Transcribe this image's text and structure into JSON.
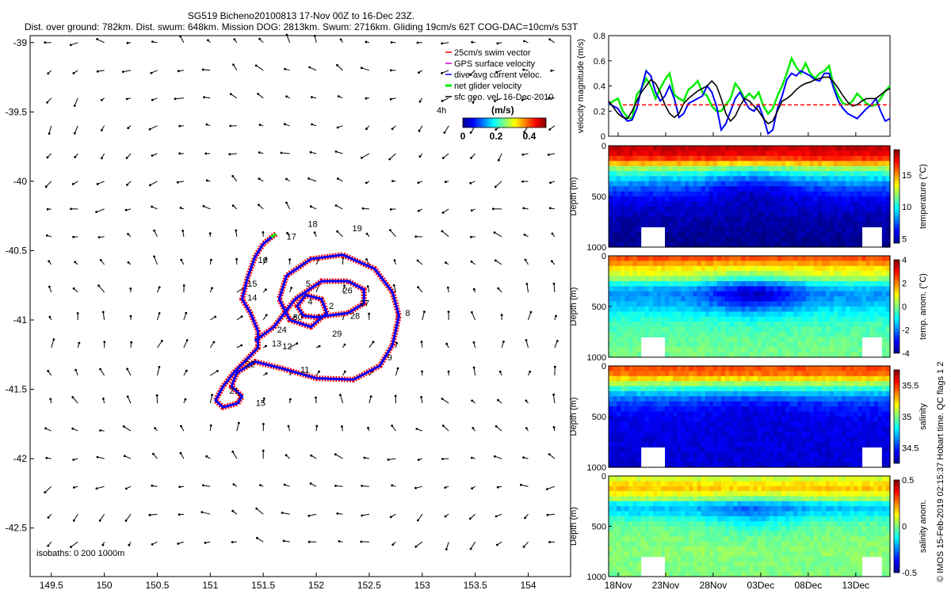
{
  "header": {
    "line1": "SG519 Bicheno20100813 17-Nov 00Z to 16-Dec 23Z.",
    "line2": "Dist. over ground: 782km. Dist. swum: 648km. Mission DOG: 2813km. Swum: 2716km. Gliding 19cm/s 62T COG-DAC=10cm/s 53T"
  },
  "credit": "© IMOS 15-Feb-2019 02:15:37 Hobart time. QC flags 1  2",
  "colors": {
    "swim": "#ff0000",
    "gps": "#d000d0",
    "dac": "#0000ff",
    "net": "#00ee00",
    "sfc": "#000000",
    "threshold": "#ff0000"
  },
  "chart_data": [
    {
      "type": "scatter",
      "name": "glider track map",
      "xticks": [
        "149.5",
        "150",
        "150.5",
        "151",
        "151.5",
        "152",
        "152.5",
        "153",
        "153.5",
        "154"
      ],
      "yticks": [
        "-39",
        "-39.5",
        "-40",
        "-40.5",
        "-41",
        "-41.5",
        "-42",
        "-42.5"
      ],
      "xlim": [
        149.3,
        154.4
      ],
      "ylim": [
        -42.85,
        -38.95
      ],
      "isobaths_note": "isobaths: 0   200   1000m",
      "legend": {
        "placement": "top-right",
        "items": [
          "25cm/s swim vector",
          "GPS surface velocity",
          "dive-avg current veloc.",
          "net glider velocity",
          "sfc geo. vel. 16-Dec-2010"
        ],
        "duration": "4h",
        "colorbar_title": "(m/s)",
        "colorbar_ticks": [
          "0",
          "0.2",
          "0.4"
        ]
      },
      "track": [
        [
          151.62,
          -40.38
        ],
        [
          151.5,
          -40.45
        ],
        [
          151.42,
          -40.55
        ],
        [
          151.35,
          -40.7
        ],
        [
          151.3,
          -40.85
        ],
        [
          151.38,
          -40.95
        ],
        [
          151.45,
          -41.08
        ],
        [
          151.45,
          -41.2
        ],
        [
          151.35,
          -41.28
        ],
        [
          151.22,
          -41.38
        ],
        [
          151.12,
          -41.48
        ],
        [
          151.05,
          -41.58
        ],
        [
          151.12,
          -41.63
        ],
        [
          151.26,
          -41.6
        ],
        [
          151.3,
          -41.55
        ],
        [
          151.2,
          -41.48
        ],
        [
          151.25,
          -41.38
        ],
        [
          151.42,
          -41.3
        ],
        [
          151.68,
          -41.35
        ],
        [
          152.0,
          -41.42
        ],
        [
          152.35,
          -41.43
        ],
        [
          152.6,
          -41.33
        ],
        [
          152.72,
          -41.18
        ],
        [
          152.78,
          -40.97
        ],
        [
          152.72,
          -40.8
        ],
        [
          152.55,
          -40.63
        ],
        [
          152.25,
          -40.53
        ],
        [
          151.95,
          -40.56
        ],
        [
          151.72,
          -40.68
        ],
        [
          151.65,
          -40.85
        ],
        [
          151.75,
          -41.0
        ],
        [
          151.95,
          -41.05
        ],
        [
          152.1,
          -40.95
        ],
        [
          152.05,
          -40.85
        ],
        [
          151.9,
          -40.82
        ],
        [
          151.82,
          -40.9
        ],
        [
          151.88,
          -40.97
        ],
        [
          152.0,
          -40.98
        ],
        [
          152.3,
          -40.95
        ],
        [
          152.45,
          -40.88
        ],
        [
          152.45,
          -40.78
        ],
        [
          152.3,
          -40.72
        ],
        [
          152.05,
          -40.72
        ],
        [
          151.8,
          -40.85
        ],
        [
          151.6,
          -41.05
        ],
        [
          151.42,
          -41.15
        ]
      ],
      "day_labels": [
        {
          "t": "2",
          "x": 152.12,
          "y": -40.92
        },
        {
          "t": "4",
          "x": 151.92,
          "y": -40.89
        },
        {
          "t": "5",
          "x": 151.9,
          "y": -40.76
        },
        {
          "t": "8",
          "x": 152.84,
          "y": -40.97
        },
        {
          "t": "9",
          "x": 152.67,
          "y": -41.29
        },
        {
          "t": "11",
          "x": 151.85,
          "y": -41.38
        },
        {
          "t": "12",
          "x": 151.68,
          "y": -41.21
        },
        {
          "t": "13",
          "x": 151.58,
          "y": -41.19
        },
        {
          "t": "15",
          "x": 151.43,
          "y": -41.62
        },
        {
          "t": "15",
          "x": 151.35,
          "y": -40.76
        },
        {
          "t": "14",
          "x": 151.35,
          "y": -40.86
        },
        {
          "t": "16",
          "x": 151.45,
          "y": -40.59
        },
        {
          "t": "17",
          "x": 151.72,
          "y": -40.42
        },
        {
          "t": "18",
          "x": 151.92,
          "y": -40.33
        },
        {
          "t": "19",
          "x": 152.34,
          "y": -40.36
        },
        {
          "t": "21",
          "x": 151.18,
          "y": -41.53
        },
        {
          "t": "22",
          "x": 151.33,
          "y": -41.34
        },
        {
          "t": "24",
          "x": 151.63,
          "y": -41.09
        },
        {
          "t": "26",
          "x": 152.25,
          "y": -40.81
        },
        {
          "t": "27",
          "x": 152.41,
          "y": -40.9
        },
        {
          "t": "28",
          "x": 152.32,
          "y": -40.99
        },
        {
          "t": "29",
          "x": 152.15,
          "y": -41.12
        },
        {
          "t": "30",
          "x": 151.78,
          "y": -41.0
        }
      ]
    },
    {
      "type": "line",
      "name": "velocity magnitude",
      "ylabel": "velocity magnitude (m/s)",
      "ylim": [
        0,
        0.8
      ],
      "yticks": [
        "0",
        "0.2",
        "0.4",
        "0.6",
        "0.8"
      ],
      "threshold": 0.25,
      "xlim": [
        0,
        29.6
      ],
      "series": [
        {
          "key": "net",
          "values": [
            0.25,
            0.28,
            0.3,
            0.2,
            0.15,
            0.14,
            0.33,
            0.38,
            0.46,
            0.4,
            0.3,
            0.38,
            0.45,
            0.5,
            0.33,
            0.3,
            0.28,
            0.37,
            0.4,
            0.44,
            0.35,
            0.32,
            0.24,
            0.2,
            0.2,
            0.25,
            0.3,
            0.42,
            0.37,
            0.3,
            0.34,
            0.3,
            0.35,
            0.24,
            0.18,
            0.22,
            0.32,
            0.4,
            0.5,
            0.62,
            0.55,
            0.5,
            0.58,
            0.5,
            0.46,
            0.5,
            0.52,
            0.56,
            0.4,
            0.32,
            0.26,
            0.25,
            0.28,
            0.34,
            0.3,
            0.26,
            0.24,
            0.25,
            0.3,
            0.36,
            0.4
          ]
        },
        {
          "key": "dac",
          "values": [
            0.26,
            0.24,
            0.22,
            0.16,
            0.12,
            0.13,
            0.22,
            0.38,
            0.52,
            0.48,
            0.35,
            0.28,
            0.32,
            0.4,
            0.3,
            0.15,
            0.18,
            0.26,
            0.28,
            0.3,
            0.32,
            0.4,
            0.35,
            0.24,
            0.05,
            0.1,
            0.2,
            0.3,
            0.35,
            0.28,
            0.22,
            0.2,
            0.25,
            0.15,
            0.02,
            0.05,
            0.22,
            0.32,
            0.45,
            0.5,
            0.48,
            0.52,
            0.5,
            0.48,
            0.45,
            0.44,
            0.5,
            0.5,
            0.38,
            0.28,
            0.22,
            0.18,
            0.16,
            0.14,
            0.18,
            0.22,
            0.25,
            0.3,
            0.2,
            0.12,
            0.14
          ]
        },
        {
          "key": "sfc",
          "values": [
            0.28,
            0.23,
            0.18,
            0.15,
            0.14,
            0.2,
            0.28,
            0.35,
            0.4,
            0.45,
            0.42,
            0.35,
            0.25,
            0.18,
            0.15,
            0.18,
            0.26,
            0.3,
            0.33,
            0.36,
            0.38,
            0.4,
            0.44,
            0.4,
            0.3,
            0.18,
            0.12,
            0.16,
            0.24,
            0.3,
            0.28,
            0.24,
            0.2,
            0.14,
            0.1,
            0.12,
            0.2,
            0.28,
            0.3,
            0.33,
            0.37,
            0.4,
            0.42,
            0.43,
            0.45,
            0.46,
            0.47,
            0.47,
            0.43,
            0.38,
            0.32,
            0.27,
            0.24,
            0.25,
            0.28,
            0.3,
            0.3,
            0.3,
            0.33,
            0.36,
            0.38
          ]
        }
      ]
    },
    {
      "type": "heatmap",
      "name": "temperature",
      "cbar_label": "temperature (°C)",
      "cbar_ticks": [
        {
          "v": 5,
          "t": "5"
        },
        {
          "v": 10,
          "t": "10"
        },
        {
          "v": 15,
          "t": "15"
        }
      ],
      "clim": [
        4.3,
        19.0
      ],
      "ylabel": "Depth (m)",
      "yticks": [
        {
          "v": 0,
          "t": "0"
        },
        {
          "v": 500,
          "t": "500"
        },
        {
          "v": 1000,
          "t": "1000"
        }
      ],
      "ylim": [
        0,
        1000
      ],
      "profile": [
        18,
        17.5,
        16.5,
        14.5,
        12,
        10.5,
        9.2,
        8.2,
        7.3,
        6.6,
        6.1,
        5.7,
        5.4,
        5.2,
        5.0,
        4.9,
        4.8,
        4.7,
        4.6,
        4.5
      ]
    },
    {
      "type": "heatmap",
      "name": "temperature anomaly",
      "cbar_label": "temp. anom. (°C)",
      "cbar_ticks": [
        {
          "v": -4,
          "t": "-4"
        },
        {
          "v": -2,
          "t": "-2"
        },
        {
          "v": 0,
          "t": "0"
        },
        {
          "v": 2,
          "t": "2"
        },
        {
          "v": 4,
          "t": "4"
        }
      ],
      "clim": [
        -4,
        4
      ],
      "ylabel": "Depth (m)",
      "yticks": [
        {
          "v": 0,
          "t": "0"
        },
        {
          "v": 500,
          "t": "500"
        },
        {
          "v": 1000,
          "t": "1000"
        }
      ],
      "ylim": [
        0,
        1000
      ],
      "profile": [
        2.4,
        1.8,
        1.2,
        0.8,
        0.2,
        -0.8,
        -1.5,
        -1.8,
        -1.7,
        -1.5,
        -1.2,
        -0.9,
        -0.7,
        -0.5,
        -0.4,
        -0.3,
        -0.2,
        -0.2,
        -0.1,
        -0.1
      ]
    },
    {
      "type": "heatmap",
      "name": "salinity",
      "cbar_label": "salinity",
      "cbar_ticks": [
        {
          "v": 34.5,
          "t": "34.5"
        },
        {
          "v": 35,
          "t": "35"
        },
        {
          "v": 35.5,
          "t": "35.5"
        }
      ],
      "clim": [
        34.25,
        35.75
      ],
      "ylabel": "Depth (m)",
      "yticks": [
        {
          "v": 0,
          "t": "0"
        },
        {
          "v": 500,
          "t": "500"
        },
        {
          "v": 1000,
          "t": "1000"
        }
      ],
      "ylim": [
        0,
        1000
      ],
      "profile": [
        35.45,
        35.4,
        35.25,
        35.05,
        34.88,
        34.72,
        34.6,
        34.52,
        34.47,
        34.44,
        34.42,
        34.41,
        34.4,
        34.4,
        34.39,
        34.39,
        34.38,
        34.38,
        34.38,
        34.37
      ]
    },
    {
      "type": "heatmap",
      "name": "salinity anomaly",
      "cbar_label": "salinity anom.",
      "cbar_ticks": [
        {
          "v": -0.5,
          "t": "-0.5"
        },
        {
          "v": 0,
          "t": "0"
        },
        {
          "v": 0.5,
          "t": "0.5"
        }
      ],
      "clim": [
        -0.5,
        0.5
      ],
      "ylabel": "Depth (m)",
      "yticks": [
        {
          "v": 0,
          "t": "0"
        },
        {
          "v": 500,
          "t": "500"
        },
        {
          "v": 1000,
          "t": "1000"
        }
      ],
      "ylim": [
        0,
        1000
      ],
      "profile": [
        0.08,
        0.15,
        0.18,
        0.12,
        0.04,
        -0.12,
        -0.18,
        -0.14,
        -0.08,
        -0.04,
        -0.02,
        -0.01,
        0,
        0,
        0.01,
        0.01,
        0,
        0,
        0,
        0
      ]
    }
  ],
  "time_axis": {
    "xlim": [
      0,
      29.6
    ],
    "ticks": [
      {
        "v": 1,
        "t": "18Nov"
      },
      {
        "v": 6,
        "t": "23Nov"
      },
      {
        "v": 11,
        "t": "28Nov"
      },
      {
        "v": 16,
        "t": "03Dec"
      },
      {
        "v": 21,
        "t": "08Dec"
      },
      {
        "v": 26,
        "t": "13Dec"
      }
    ]
  }
}
